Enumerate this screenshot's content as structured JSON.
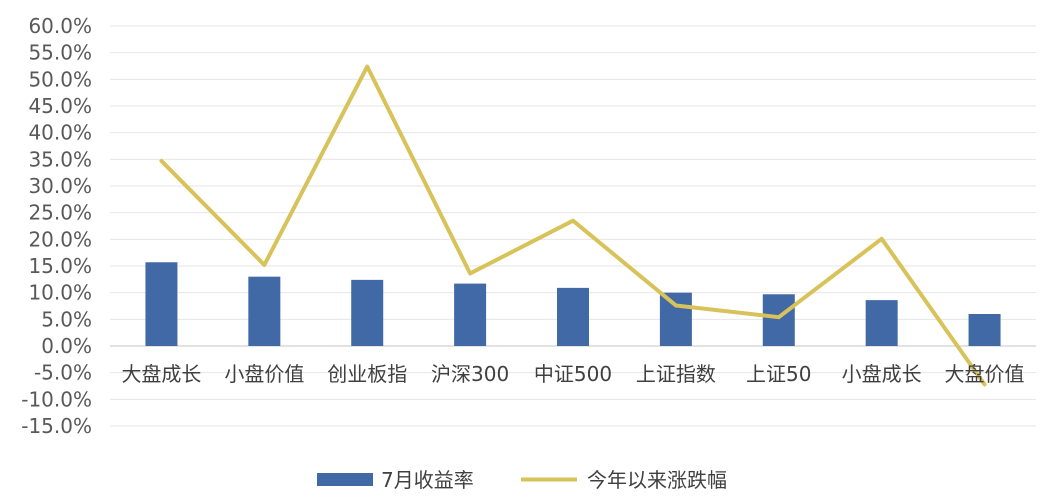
{
  "chart_data": {
    "type": "bar",
    "categories": [
      "大盘成长",
      "小盘价值",
      "创业板指",
      "沪深300",
      "中证500",
      "上证指数",
      "上证50",
      "小盘成长",
      "大盘价值"
    ],
    "series": [
      {
        "name": "7月收益率",
        "type": "bar",
        "color": "#4169A6",
        "values": [
          15.7,
          13.0,
          12.4,
          11.7,
          10.9,
          10.0,
          9.7,
          8.6,
          6.0
        ]
      },
      {
        "name": "今年以来涨跌幅",
        "type": "line",
        "color": "#D8C25A",
        "values": [
          34.7,
          15.2,
          52.4,
          13.6,
          23.5,
          7.6,
          5.4,
          20.1,
          -7.2
        ]
      }
    ],
    "ylim": [
      -15,
      60
    ],
    "ytick_step": 5,
    "ytick_labels": [
      "60.0%",
      "55.0%",
      "50.0%",
      "45.0%",
      "40.0%",
      "35.0%",
      "30.0%",
      "25.0%",
      "20.0%",
      "15.0%",
      "10.0%",
      "5.0%",
      "0.0%",
      "-5.0%",
      "-10.0%",
      "-15.0%"
    ],
    "grid": true,
    "legend_position": "bottom-center"
  }
}
